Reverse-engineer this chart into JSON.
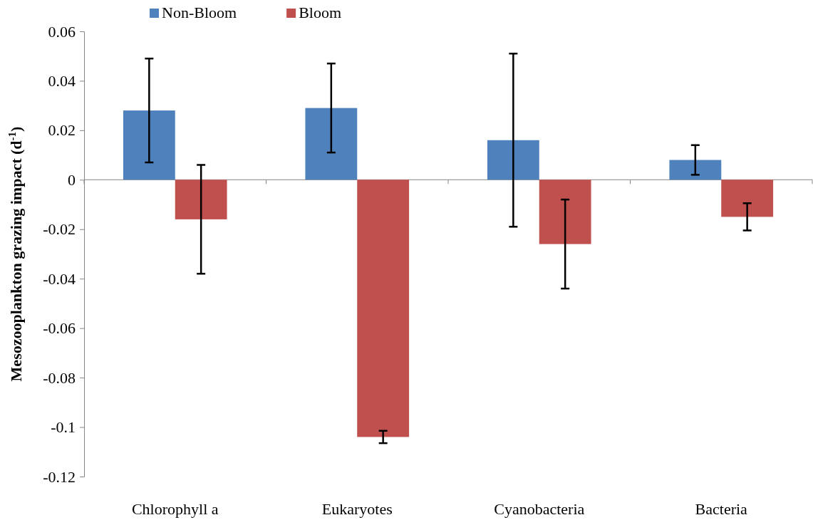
{
  "chart_data": {
    "type": "bar",
    "ylabel": "Mesozooplankton grazing impact (d$^{-1}$)",
    "categories": [
      "Chlorophyll a",
      "Eukaryotes",
      "Cyanobacteria",
      "Bacteria"
    ],
    "series": [
      {
        "name": "Non-Bloom",
        "color": "#4f81bd",
        "values": [
          0.028,
          0.029,
          0.016,
          0.008
        ],
        "errors": [
          0.021,
          0.018,
          0.035,
          0.006
        ]
      },
      {
        "name": "Bloom",
        "color": "#c0504d",
        "values": [
          -0.016,
          -0.104,
          -0.026,
          -0.015
        ],
        "errors": [
          0.022,
          0.0025,
          0.018,
          0.0055
        ]
      }
    ],
    "ylim": [
      -0.12,
      0.06
    ],
    "yticks": [
      -0.12,
      -0.1,
      -0.08,
      -0.06,
      -0.04,
      -0.02,
      0,
      0.02,
      0.04,
      0.06
    ],
    "legend": "top"
  }
}
